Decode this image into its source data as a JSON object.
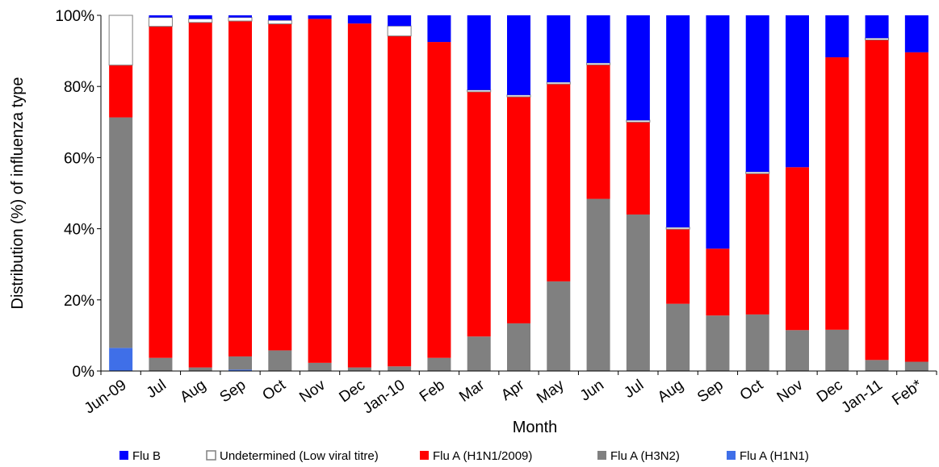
{
  "chart_data": {
    "type": "bar",
    "stacked": true,
    "normalized": true,
    "xlabel": "Month",
    "ylabel": "Distribution (%) of  influenza  type",
    "ylim": [
      0,
      100
    ],
    "yticks": [
      "0%",
      "20%",
      "40%",
      "60%",
      "80%",
      "100%"
    ],
    "grid": false,
    "legend_position": "bottom",
    "categories": [
      "Jun-09",
      "Jul",
      "Aug",
      "Sep",
      "Oct",
      "Nov",
      "Dec",
      "Jan-10",
      "Feb",
      "Mar",
      "Apr",
      "May",
      "Jun",
      "Jul",
      "Aug",
      "Sep",
      "Oct",
      "Nov",
      "Dec",
      "Jan-11",
      "Feb*"
    ],
    "series": [
      {
        "name": "Flu A (H1N1)",
        "color": "#3f6fe8",
        "values": [
          6.5,
          0,
          0,
          0.4,
          0,
          0,
          0,
          0,
          0,
          0,
          0,
          0,
          0,
          0,
          0,
          0,
          0,
          0,
          0,
          0,
          0
        ]
      },
      {
        "name": "Flu A (H3N2)",
        "color": "#808080",
        "values": [
          64.8,
          3.7,
          1.0,
          3.7,
          5.8,
          2.3,
          1.0,
          1.3,
          3.7,
          9.7,
          13.4,
          25.2,
          48.4,
          44.0,
          18.9,
          15.6,
          15.9,
          11.5,
          11.6,
          3.1,
          2.6
        ]
      },
      {
        "name": "Flu A (H1N1/2009)",
        "color": "#ff0000",
        "values": [
          14.7,
          93.2,
          97.0,
          94.3,
          91.8,
          96.7,
          96.7,
          92.9,
          88.8,
          68.8,
          63.7,
          55.5,
          37.7,
          26.0,
          21.0,
          18.8,
          39.6,
          45.8,
          76.6,
          90.0,
          87.0
        ]
      },
      {
        "name": "Undetermined (Low viral titre)",
        "color": "#ffffff",
        "values": [
          14.0,
          2.5,
          1.0,
          1.0,
          1.0,
          0,
          0,
          2.8,
          0,
          0.5,
          0.5,
          0.5,
          0.5,
          0.5,
          0.5,
          0,
          0.5,
          0,
          0,
          0.5,
          0
        ]
      },
      {
        "name": "Flu B",
        "color": "#0000ff",
        "values": [
          0,
          0.6,
          1.0,
          0.6,
          1.4,
          1.0,
          2.3,
          3.0,
          7.5,
          21.0,
          22.4,
          18.8,
          13.4,
          29.5,
          59.6,
          65.6,
          44.0,
          42.7,
          11.8,
          6.4,
          10.4
        ]
      }
    ],
    "legend_order": [
      "Flu B",
      "Undetermined (Low viral titre)",
      "Flu A (H1N1/2009)",
      "Flu A (H3N2)",
      "Flu A (H1N1)"
    ]
  }
}
